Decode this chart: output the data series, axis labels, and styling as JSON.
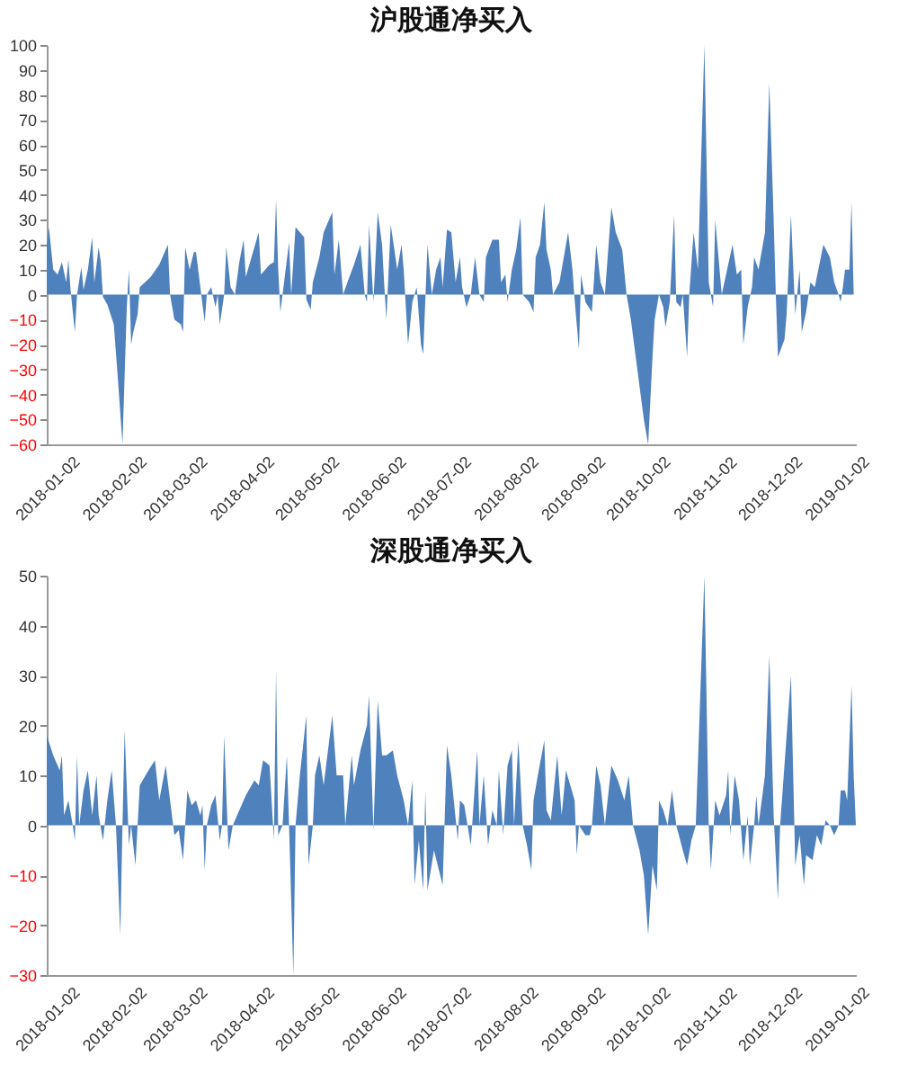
{
  "chart_data": [
    {
      "type": "area",
      "title": "沪股通净买入",
      "color": "#4f81bd",
      "xlim": [
        "2018-01-02",
        "2019-01-11"
      ],
      "ylim": [
        -60,
        100
      ],
      "yticks": [
        -60,
        -50,
        -40,
        -30,
        -20,
        -10,
        0,
        10,
        20,
        30,
        40,
        50,
        60,
        70,
        80,
        90,
        100
      ],
      "xticks": [
        "2018-01-02",
        "2018-02-02",
        "2018-03-02",
        "2018-04-02",
        "2018-05-02",
        "2018-06-02",
        "2018-07-02",
        "2018-08-02",
        "2018-09-02",
        "2018-10-02",
        "2018-11-02",
        "2018-12-02",
        "2019-01-02"
      ],
      "x": [
        "2018-01-02",
        "2018-01-03",
        "2018-01-05",
        "2018-01-07",
        "2018-01-09",
        "2018-01-11",
        "2018-01-12",
        "2018-01-13",
        "2018-01-15",
        "2018-01-16",
        "2018-01-18",
        "2018-01-19",
        "2018-01-21",
        "2018-01-23",
        "2018-01-24",
        "2018-01-26",
        "2018-01-27",
        "2018-01-28",
        "2018-01-30",
        "2018-02-02",
        "2018-02-04",
        "2018-02-06",
        "2018-02-08",
        "2018-02-09",
        "2018-02-10",
        "2018-02-11",
        "2018-02-13",
        "2018-02-14",
        "2018-02-19",
        "2018-02-23",
        "2018-02-27",
        "2018-02-28",
        "2018-03-02",
        "2018-03-05",
        "2018-03-06",
        "2018-03-07",
        "2018-03-09",
        "2018-03-11",
        "2018-03-12",
        "2018-03-14",
        "2018-03-16",
        "2018-03-17",
        "2018-03-19",
        "2018-03-21",
        "2018-03-22",
        "2018-03-23",
        "2018-03-25",
        "2018-03-26",
        "2018-03-28",
        "2018-03-30",
        "2018-04-01",
        "2018-04-03",
        "2018-04-04",
        "2018-04-07",
        "2018-04-10",
        "2018-04-11",
        "2018-04-13",
        "2018-04-15",
        "2018-04-17",
        "2018-04-18",
        "2018-04-19",
        "2018-04-20",
        "2018-04-21",
        "2018-04-24",
        "2018-04-25",
        "2018-04-27",
        "2018-04-29",
        "2018-05-01",
        "2018-05-02",
        "2018-05-04",
        "2018-05-05",
        "2018-05-08",
        "2018-05-10",
        "2018-05-14",
        "2018-05-15",
        "2018-05-17",
        "2018-05-19",
        "2018-05-21",
        "2018-05-24",
        "2018-05-27",
        "2018-05-29",
        "2018-05-30",
        "2018-05-31",
        "2018-06-02",
        "2018-06-04",
        "2018-06-06",
        "2018-06-07",
        "2018-06-08",
        "2018-06-10",
        "2018-06-13",
        "2018-06-15",
        "2018-06-16",
        "2018-06-18",
        "2018-06-20",
        "2018-06-22",
        "2018-06-24",
        "2018-06-25",
        "2018-06-27",
        "2018-06-29",
        "2018-07-01",
        "2018-07-03",
        "2018-07-04",
        "2018-07-06",
        "2018-07-08",
        "2018-07-10",
        "2018-07-12",
        "2018-07-13",
        "2018-07-15",
        "2018-07-17",
        "2018-07-19",
        "2018-07-21",
        "2018-07-23",
        "2018-07-24",
        "2018-07-27",
        "2018-07-30",
        "2018-07-31",
        "2018-08-02",
        "2018-08-03",
        "2018-08-05",
        "2018-08-07",
        "2018-08-09",
        "2018-08-10",
        "2018-08-13",
        "2018-08-15",
        "2018-08-16",
        "2018-08-18",
        "2018-08-20",
        "2018-08-21",
        "2018-08-23",
        "2018-08-24",
        "2018-08-27",
        "2018-08-31",
        "2018-09-02",
        "2018-09-03",
        "2018-09-05",
        "2018-09-06",
        "2018-09-08",
        "2018-09-11",
        "2018-09-13",
        "2018-09-15",
        "2018-09-17",
        "2018-09-20",
        "2018-09-22",
        "2018-09-25",
        "2018-09-27",
        "2018-09-29",
        "2018-10-02",
        "2018-10-05",
        "2018-10-07",
        "2018-10-09",
        "2018-10-10",
        "2018-10-12",
        "2018-10-14",
        "2018-10-15",
        "2018-10-17",
        "2018-10-19",
        "2018-10-20",
        "2018-10-22",
        "2018-10-23",
        "2018-10-25",
        "2018-10-26",
        "2018-10-28",
        "2018-10-30",
        "2018-11-02",
        "2018-11-04",
        "2018-11-06",
        "2018-11-07",
        "2018-11-09",
        "2018-11-10",
        "2018-11-12",
        "2018-11-15",
        "2018-11-17",
        "2018-11-19",
        "2018-11-20",
        "2018-11-22",
        "2018-11-24",
        "2018-11-25",
        "2018-11-27",
        "2018-11-30",
        "2018-12-02",
        "2018-12-04",
        "2018-12-05",
        "2018-12-06",
        "2018-12-09",
        "2018-12-10",
        "2018-12-12",
        "2018-12-14",
        "2018-12-16",
        "2018-12-17",
        "2018-12-19",
        "2018-12-21",
        "2018-12-23",
        "2018-12-27",
        "2018-12-30",
        "2019-01-01",
        "2019-01-03",
        "2019-01-04",
        "2019-01-05",
        "2019-01-06",
        "2019-01-08",
        "2019-01-09",
        "2019-01-10"
      ],
      "values": [
        20,
        27,
        10,
        8,
        13,
        5,
        14,
        2,
        -15,
        0,
        11,
        2,
        10,
        23,
        5,
        19,
        13,
        -1,
        -4,
        -12,
        -35,
        -60,
        -5,
        10,
        -20,
        -15,
        -8,
        3,
        7,
        12,
        20,
        0,
        -10,
        -12,
        -15,
        19,
        10,
        17,
        17,
        3,
        -11,
        0,
        3,
        -5,
        0,
        -12,
        0,
        19,
        3,
        0,
        13,
        22,
        7,
        16,
        25,
        8,
        10,
        12,
        13,
        38,
        10,
        -7,
        0,
        21,
        0,
        27,
        25,
        23,
        -2,
        -6,
        5,
        15,
        25,
        33,
        8,
        22,
        0,
        5,
        12,
        20,
        0,
        -3,
        28,
        -3,
        33,
        20,
        4,
        -10,
        28,
        10,
        20,
        10,
        -20,
        -3,
        3,
        -20,
        -24,
        20,
        0,
        10,
        15,
        3,
        26,
        25,
        5,
        15,
        3,
        -5,
        0,
        15,
        0,
        -3,
        15,
        22,
        22,
        5,
        8,
        -3,
        10,
        18,
        31,
        0,
        -3,
        -7,
        15,
        20,
        37,
        18,
        10,
        0,
        5,
        25,
        10,
        -2,
        -22,
        8,
        -3,
        -7,
        20,
        5,
        0,
        35,
        25,
        18,
        0,
        -10,
        -30,
        -50,
        -60,
        -25,
        -10,
        0,
        -5,
        -13,
        -3,
        32,
        -3,
        -5,
        0,
        -25,
        0,
        25,
        10,
        100,
        5,
        -5,
        30,
        10,
        0,
        8,
        20,
        8,
        10,
        -20,
        -5,
        3,
        15,
        10,
        25,
        85,
        30,
        0,
        -25,
        -18,
        -8,
        32,
        -8,
        10,
        -15,
        -7,
        5,
        3,
        20,
        15,
        5,
        0,
        -3,
        3,
        10,
        10,
        37,
        0
      ]
    },
    {
      "type": "area",
      "title": "深股通净买入",
      "color": "#4f81bd",
      "xlim": [
        "2018-01-02",
        "2019-01-11"
      ],
      "ylim": [
        -30,
        50
      ],
      "yticks": [
        -30,
        -20,
        -10,
        0,
        10,
        20,
        30,
        40,
        50
      ],
      "xticks": [
        "2018-01-02",
        "2018-02-02",
        "2018-03-02",
        "2018-04-02",
        "2018-05-02",
        "2018-06-02",
        "2018-07-02",
        "2018-08-02",
        "2018-09-02",
        "2018-10-02",
        "2018-11-02",
        "2018-12-02",
        "2019-01-02"
      ],
      "x": [
        "2018-01-02",
        "2018-01-05",
        "2018-01-08",
        "2018-01-09",
        "2018-01-10",
        "2018-01-12",
        "2018-01-14",
        "2018-01-15",
        "2018-01-16",
        "2018-01-17",
        "2018-01-19",
        "2018-01-21",
        "2018-01-23",
        "2018-01-25",
        "2018-01-26",
        "2018-01-28",
        "2018-01-30",
        "2018-02-01",
        "2018-02-03",
        "2018-02-05",
        "2018-02-06",
        "2018-02-07",
        "2018-02-09",
        "2018-02-10",
        "2018-02-12",
        "2018-02-14",
        "2018-02-18",
        "2018-02-21",
        "2018-02-23",
        "2018-02-26",
        "2018-02-28",
        "2018-03-02",
        "2018-03-04",
        "2018-03-06",
        "2018-03-08",
        "2018-03-10",
        "2018-03-12",
        "2018-03-14",
        "2018-03-15",
        "2018-03-16",
        "2018-03-17",
        "2018-03-19",
        "2018-03-21",
        "2018-03-23",
        "2018-03-24",
        "2018-03-25",
        "2018-03-27",
        "2018-03-29",
        "2018-04-04",
        "2018-04-08",
        "2018-04-10",
        "2018-04-12",
        "2018-04-15",
        "2018-04-17",
        "2018-04-18",
        "2018-04-19",
        "2018-04-21",
        "2018-04-23",
        "2018-04-24",
        "2018-04-26",
        "2018-04-27",
        "2018-04-29",
        "2018-05-02",
        "2018-05-03",
        "2018-05-05",
        "2018-05-06",
        "2018-05-08",
        "2018-05-10",
        "2018-05-14",
        "2018-05-16",
        "2018-05-19",
        "2018-05-20",
        "2018-05-23",
        "2018-05-24",
        "2018-05-27",
        "2018-05-30",
        "2018-05-31",
        "2018-06-02",
        "2018-06-04",
        "2018-06-06",
        "2018-06-08",
        "2018-06-11",
        "2018-06-13",
        "2018-06-16",
        "2018-06-18",
        "2018-06-20",
        "2018-06-21",
        "2018-06-23",
        "2018-06-25",
        "2018-06-26",
        "2018-06-27",
        "2018-06-30",
        "2018-07-04",
        "2018-07-06",
        "2018-07-08",
        "2018-07-11",
        "2018-07-12",
        "2018-07-14",
        "2018-07-17",
        "2018-07-20",
        "2018-07-21",
        "2018-07-23",
        "2018-07-25",
        "2018-07-27",
        "2018-07-29",
        "2018-07-30",
        "2018-08-01",
        "2018-08-03",
        "2018-08-05",
        "2018-08-06",
        "2018-08-08",
        "2018-08-10",
        "2018-08-12",
        "2018-08-14",
        "2018-08-15",
        "2018-08-17",
        "2018-08-20",
        "2018-08-21",
        "2018-08-23",
        "2018-08-26",
        "2018-08-28",
        "2018-08-30",
        "2018-09-01",
        "2018-09-03",
        "2018-09-04",
        "2018-09-05",
        "2018-09-08",
        "2018-09-10",
        "2018-09-11",
        "2018-09-13",
        "2018-09-15",
        "2018-09-17",
        "2018-09-20",
        "2018-09-23",
        "2018-09-26",
        "2018-09-28",
        "2018-09-30",
        "2018-10-03",
        "2018-10-05",
        "2018-10-07",
        "2018-10-09",
        "2018-10-11",
        "2018-10-12",
        "2018-10-14",
        "2018-10-16",
        "2018-10-18",
        "2018-10-20",
        "2018-10-23",
        "2018-10-25",
        "2018-10-27",
        "2018-10-29",
        "2018-11-02",
        "2018-11-04",
        "2018-11-05",
        "2018-11-07",
        "2018-11-09",
        "2018-11-12",
        "2018-11-13",
        "2018-11-14",
        "2018-11-16",
        "2018-11-18",
        "2018-11-20",
        "2018-11-22",
        "2018-11-23",
        "2018-11-25",
        "2018-11-26",
        "2018-11-27",
        "2018-11-30",
        "2018-12-02",
        "2018-12-04",
        "2018-12-06",
        "2018-12-07",
        "2018-12-12",
        "2018-12-14",
        "2018-12-16",
        "2018-12-18",
        "2018-12-19",
        "2018-12-22",
        "2018-12-24",
        "2018-12-26",
        "2018-12-28",
        "2018-12-30",
        "2019-01-01",
        "2019-01-03",
        "2019-01-04",
        "2019-01-06",
        "2019-01-07",
        "2019-01-09",
        "2019-01-10",
        "2019-01-11"
      ],
      "values": [
        18,
        14,
        11,
        14,
        2,
        5,
        0,
        -3,
        14,
        0,
        7,
        11,
        2,
        10,
        2,
        -3,
        5,
        11,
        0,
        -22,
        0,
        19,
        -4,
        0,
        -8,
        8,
        11,
        13,
        5,
        12,
        5,
        -2,
        -1,
        -7,
        7,
        4,
        5,
        2,
        4,
        -9,
        0,
        4,
        6,
        -3,
        0,
        18,
        -5,
        0,
        6,
        9,
        8,
        13,
        12,
        -3,
        31,
        -2,
        0,
        14,
        0,
        -30,
        0,
        10,
        22,
        -8,
        0,
        10,
        14,
        8,
        22,
        10,
        10,
        0,
        14,
        8,
        15,
        20,
        26,
        -1,
        25,
        14,
        14,
        15,
        10,
        5,
        0,
        9,
        -12,
        -3,
        -13,
        7,
        -13,
        -5,
        -12,
        16,
        10,
        -3,
        5,
        4,
        -4,
        15,
        0,
        10,
        -4,
        3,
        0,
        11,
        -2,
        12,
        15,
        0,
        17,
        0,
        -4,
        -9,
        5,
        10,
        17,
        3,
        1,
        14,
        2,
        11,
        8,
        5,
        -6,
        0,
        -2,
        -2,
        0,
        12,
        8,
        0,
        12,
        9,
        5,
        10,
        0,
        -5,
        -10,
        -22,
        -8,
        -13,
        5,
        3,
        0,
        7,
        0,
        -5,
        -8,
        -3,
        0,
        50,
        0,
        -9,
        5,
        2,
        6,
        11,
        -2,
        10,
        5,
        -7,
        2,
        -8,
        0,
        6,
        0,
        10,
        34,
        2,
        -15,
        0,
        30,
        -8,
        -2,
        -12,
        -6,
        -7,
        -2,
        -4,
        1,
        0,
        -2,
        0,
        7,
        7,
        5,
        28,
        10,
        0
      ]
    }
  ]
}
